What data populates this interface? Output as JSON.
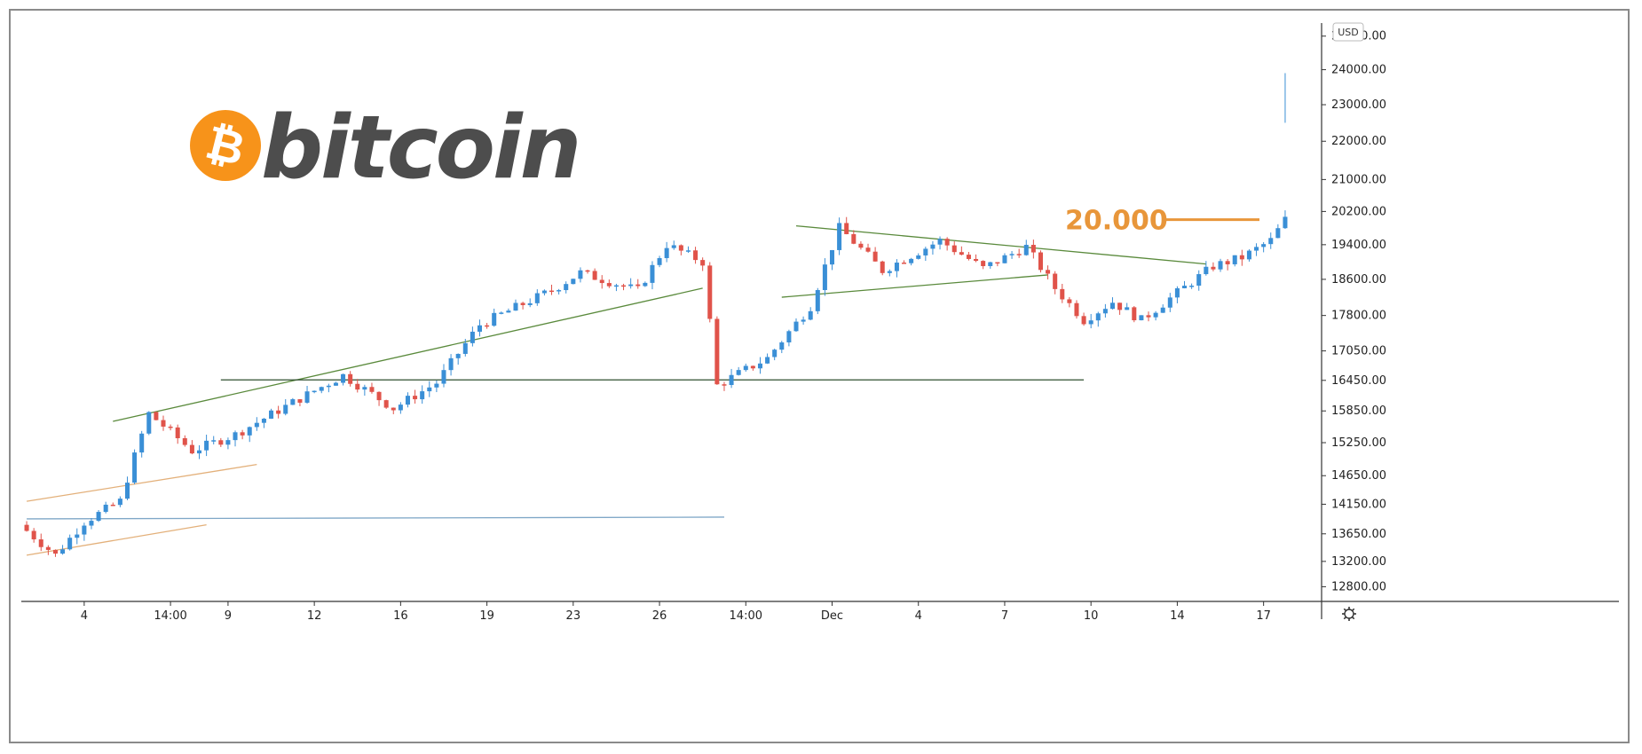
{
  "logo": {
    "symbol": "₿",
    "wordmark": "bitcoin",
    "symbol_color": "#F7931A",
    "wordmark_color": "#4D4D4D"
  },
  "annotation": {
    "label": "20.000",
    "level": 20000,
    "color": "#E8963A"
  },
  "colors": {
    "up": "#3A8FD6",
    "down": "#E0534A",
    "trendline_green": "#5A8A3C",
    "trendline_orange": "#E3B07A",
    "support_dark": "#2F4F2F",
    "support_blue": "#7FA7C7"
  },
  "toolbar": {
    "currency_label": "USD",
    "settings_icon": "gear-icon"
  },
  "chart_data": {
    "type": "candlestick",
    "asset": "BTC/USD",
    "price_axis": {
      "position": "right",
      "tick_labels": [
        "12800.00",
        "13200.00",
        "13650.00",
        "14150.00",
        "14650.00",
        "15250.00",
        "15850.00",
        "16450.00",
        "17050.00",
        "17800.00",
        "18600.00",
        "19400.00",
        "20200.00",
        "21000.00",
        "22000.00",
        "23000.00",
        "24000.00",
        "25000.00"
      ],
      "scale": "log",
      "ylim": [
        12600,
        25400
      ]
    },
    "time_axis": {
      "tick_labels": [
        "4",
        "14:00",
        "9",
        "12",
        "16",
        "19",
        "23",
        "26",
        "14:00",
        "Dec",
        "4",
        "7",
        "10",
        "14",
        "17"
      ],
      "tick_index": [
        8,
        20,
        28,
        40,
        52,
        64,
        76,
        88,
        100,
        112,
        124,
        136,
        148,
        160,
        172
      ],
      "total_bars": 176
    },
    "key_prices": [
      13800,
      13300,
      13850,
      14200,
      15800,
      15100,
      15400,
      16550,
      15900,
      16400,
      17600,
      18350,
      18750,
      18350,
      19400,
      19000,
      16350,
      16900,
      18000,
      19800,
      18800,
      19500,
      18850,
      19350,
      18400,
      17700,
      18100,
      17700,
      18900,
      19100,
      19500,
      20000,
      22600
    ],
    "key_index": [
      0,
      5,
      9,
      14,
      18,
      24,
      30,
      45,
      52,
      58,
      64,
      74,
      78,
      86,
      90,
      95,
      97,
      104,
      110,
      114,
      120,
      128,
      134,
      140,
      144,
      148,
      152,
      156,
      166,
      170,
      174,
      176,
      177
    ],
    "trendlines": [
      {
        "kind": "ascending-channel-top",
        "color": "orange",
        "from": [
          0,
          14200
        ],
        "to": [
          32,
          14850
        ]
      },
      {
        "kind": "ascending-channel-bottom",
        "color": "orange",
        "from": [
          0,
          13300
        ],
        "to": [
          25,
          13800
        ]
      },
      {
        "kind": "support",
        "color": "blue",
        "from": [
          0,
          13900
        ],
        "to": [
          97,
          13930
        ]
      },
      {
        "kind": "rising-trendline",
        "color": "green",
        "from": [
          12,
          15650
        ],
        "to": [
          94,
          18400
        ]
      },
      {
        "kind": "support",
        "color": "dark",
        "from": [
          27,
          16460
        ],
        "to": [
          147,
          16460
        ]
      },
      {
        "kind": "wedge-top",
        "color": "green",
        "from": [
          107,
          19850
        ],
        "to": [
          164,
          18950
        ]
      },
      {
        "kind": "wedge-bottom",
        "color": "green",
        "from": [
          105,
          18200
        ],
        "to": [
          142,
          18700
        ]
      }
    ]
  }
}
